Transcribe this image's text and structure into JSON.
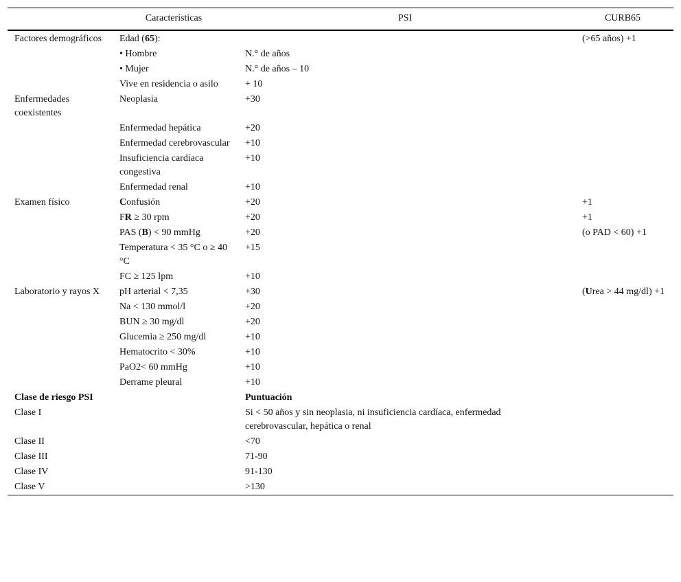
{
  "header": {
    "characteristics": "Características",
    "psi": "PSI",
    "curb65": "CURB65"
  },
  "rows": [
    {
      "group": "Factores demográficos",
      "item": [
        {
          "t": "Edad ("
        },
        {
          "t": "65",
          "b": true
        },
        {
          "t": "):"
        }
      ],
      "psi": "",
      "curb": "(>65 años) +1"
    },
    {
      "group": "",
      "item": [
        {
          "t": "• Hombre"
        }
      ],
      "psi": "N.° de años",
      "curb": ""
    },
    {
      "group": "",
      "item": [
        {
          "t": "• Mujer"
        }
      ],
      "psi": "N.° de años – 10",
      "curb": ""
    },
    {
      "group": "",
      "item": [
        {
          "t": "Vive en residencia o asilo"
        }
      ],
      "psi": "+ 10",
      "curb": ""
    },
    {
      "group": "Enfermedades coexistentes",
      "item": [
        {
          "t": "Neoplasia"
        }
      ],
      "psi": "+30",
      "curb": ""
    },
    {
      "group": "",
      "item": [
        {
          "t": "Enfermedad hepática"
        }
      ],
      "psi": "+20",
      "curb": ""
    },
    {
      "group": "",
      "item": [
        {
          "t": "Enfermedad cerebrovascular"
        }
      ],
      "psi": "+10",
      "curb": ""
    },
    {
      "group": "",
      "item": [
        {
          "t": "Insuficiencia cardíaca congestiva"
        }
      ],
      "psi": "+10",
      "curb": ""
    },
    {
      "group": "",
      "item": [
        {
          "t": "Enfermedad renal"
        }
      ],
      "psi": "+10",
      "curb": ""
    },
    {
      "group": "Examen físico",
      "item": [
        {
          "t": "C",
          "b": true
        },
        {
          "t": "onfusión"
        }
      ],
      "psi": "+20",
      "curb": "+1"
    },
    {
      "group": "",
      "item": [
        {
          "t": "F"
        },
        {
          "t": "R",
          "b": true
        },
        {
          "t": " ≥ 30 rpm"
        }
      ],
      "psi": "+20",
      "curb": "+1"
    },
    {
      "group": "",
      "item": [
        {
          "t": "PAS ("
        },
        {
          "t": "B",
          "b": true
        },
        {
          "t": ") < 90 mmHg"
        }
      ],
      "psi": "+20",
      "curb": "(o PAD < 60) +1"
    },
    {
      "group": "",
      "item": [
        {
          "t": "Temperatura < 35 °C o ≥ 40 °C"
        }
      ],
      "psi": "+15",
      "curb": ""
    },
    {
      "group": "",
      "item": [
        {
          "t": "FC ≥ 125 lpm"
        }
      ],
      "psi": "+10",
      "curb": ""
    },
    {
      "group": "Laboratorio y rayos X",
      "item": [
        {
          "t": "pH arterial < 7,35"
        }
      ],
      "psi": "+30",
      "curb": "(Urea > 44 mg/dl) +1",
      "curb_bold_first": "U"
    },
    {
      "group": "",
      "item": [
        {
          "t": "Na < 130 mmol/l"
        }
      ],
      "psi": "+20",
      "curb": ""
    },
    {
      "group": "",
      "item": [
        {
          "t": "BUN ≥ 30 mg/dl"
        }
      ],
      "psi": "+20",
      "curb": ""
    },
    {
      "group": "",
      "item": [
        {
          "t": "Glucemia ≥ 250 mg/dl"
        }
      ],
      "psi": "+10",
      "curb": ""
    },
    {
      "group": "",
      "item": [
        {
          "t": "Hematocrito < 30%"
        }
      ],
      "psi": "+10",
      "curb": ""
    },
    {
      "group": "",
      "item": [
        {
          "t": "PaO2< 60 mmHg"
        }
      ],
      "psi": "+10",
      "curb": ""
    },
    {
      "group": "",
      "item": [
        {
          "t": "Derrame pleural"
        }
      ],
      "psi": "+10",
      "curb": ""
    }
  ],
  "risk": {
    "header": "Clase de riesgo PSI",
    "score_header": "Puntuación",
    "classes": [
      {
        "label": "Clase I",
        "score": "Si < 50 años y sin neoplasia, ni insuficiencia cardíaca, enfermedad cerebrovascular, hepática o renal"
      },
      {
        "label": "Clase II",
        "score": "<70"
      },
      {
        "label": "Clase III",
        "score": "71-90"
      },
      {
        "label": "Clase IV",
        "score": "91-130"
      },
      {
        "label": "Clase V",
        "score": ">130"
      }
    ]
  }
}
